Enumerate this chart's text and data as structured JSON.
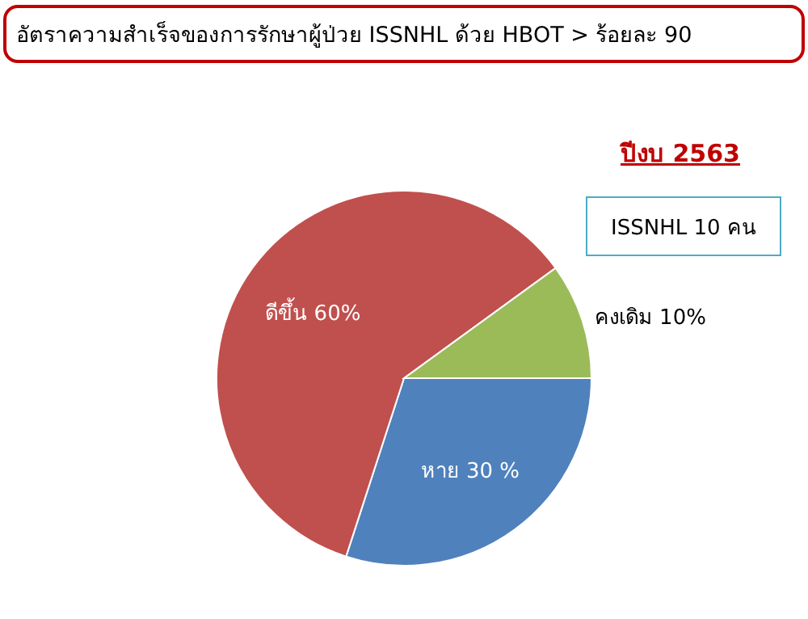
{
  "chart_data": {
    "type": "pie",
    "title": "อัตราความสำเร็จของการรักษาผู้ป่วย ISSNHL ด้วย HBOT > ร้อยละ 90",
    "subtitle": "ปีงบ 2563",
    "annotations": [
      "ISSNHL 10 คน"
    ],
    "categories": [
      "หาย",
      "ดีขึ้น",
      "คงเดิม"
    ],
    "values": [
      30,
      60,
      10
    ],
    "value_labels": [
      "30 %",
      "60%",
      "10%"
    ],
    "colors": [
      "#4f81bd",
      "#c0504d",
      "#9bbb59"
    ]
  }
}
